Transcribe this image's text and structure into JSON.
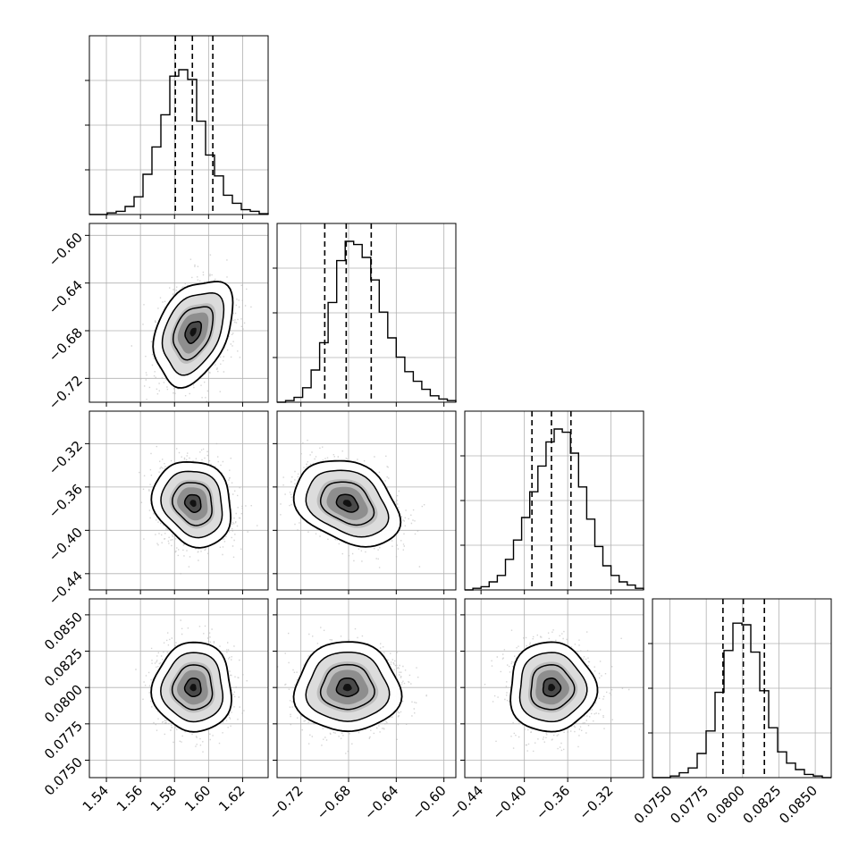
{
  "chart_data": {
    "type": "corner",
    "parameters": [
      {
        "range": [
          1.53,
          1.635
        ],
        "ticks": [
          "1.54",
          "1.56",
          "1.58",
          "1.60",
          "1.62"
        ],
        "tick_values": [
          1.54,
          1.56,
          1.58,
          1.6,
          1.62
        ],
        "quantiles": [
          1.5805,
          1.5905,
          1.6025
        ],
        "mean": 1.591,
        "sigma": 0.0105
      },
      {
        "range": [
          -0.74,
          -0.59
        ],
        "ticks": [
          "−0.72",
          "−0.68",
          "−0.64",
          "−0.60"
        ],
        "tick_values": [
          -0.72,
          -0.68,
          -0.64,
          -0.6
        ],
        "quantiles": [
          -0.7,
          -0.682,
          -0.661
        ],
        "mean": -0.681,
        "sigma": 0.02
      },
      {
        "range": [
          -0.455,
          -0.29
        ],
        "ticks": [
          "−0.44",
          "−0.40",
          "−0.36",
          "−0.32"
        ],
        "tick_values": [
          -0.44,
          -0.4,
          -0.36,
          -0.32
        ],
        "quantiles": [
          -0.393,
          -0.375,
          -0.357
        ],
        "mean": -0.375,
        "sigma": 0.018
      },
      {
        "range": [
          0.0738,
          0.0861
        ],
        "ticks": [
          "0.0750",
          "0.0775",
          "0.0800",
          "0.0825",
          "0.0850"
        ],
        "tick_values": [
          0.075,
          0.0775,
          0.08,
          0.0825,
          0.085
        ],
        "quantiles": [
          0.07865,
          0.08005,
          0.0815
        ],
        "mean": 0.08,
        "sigma": 0.0014
      }
    ],
    "histograms": [
      [
        0,
        0,
        0.01,
        0.02,
        0.05,
        0.11,
        0.25,
        0.42,
        0.62,
        0.86,
        0.9,
        0.84,
        0.58,
        0.37,
        0.24,
        0.12,
        0.07,
        0.03,
        0.02,
        0.005
      ],
      [
        0,
        0.01,
        0.03,
        0.09,
        0.2,
        0.37,
        0.62,
        0.88,
        1.0,
        0.98,
        0.9,
        0.76,
        0.56,
        0.4,
        0.28,
        0.19,
        0.13,
        0.08,
        0.04,
        0.02,
        0.01
      ],
      [
        0,
        0.01,
        0.02,
        0.05,
        0.09,
        0.19,
        0.31,
        0.45,
        0.61,
        0.77,
        0.92,
        1.0,
        0.98,
        0.85,
        0.64,
        0.44,
        0.27,
        0.15,
        0.09,
        0.05,
        0.03,
        0.01
      ],
      [
        0,
        0,
        0.01,
        0.03,
        0.06,
        0.15,
        0.29,
        0.53,
        0.79,
        0.96,
        0.95,
        0.78,
        0.54,
        0.31,
        0.16,
        0.09,
        0.05,
        0.02,
        0.01,
        0
      ]
    ],
    "covariance_rho": {
      "1-0": 0.35,
      "2-0": -0.15,
      "2-1": -0.3,
      "3-0": 0.0,
      "3-1": 0.0,
      "3-2": 0.0
    },
    "grid": true,
    "colors": {
      "scatter": "#b0b0b0",
      "contour": "#000000",
      "hist": "#000000",
      "grid": "#b0b0b0"
    }
  }
}
